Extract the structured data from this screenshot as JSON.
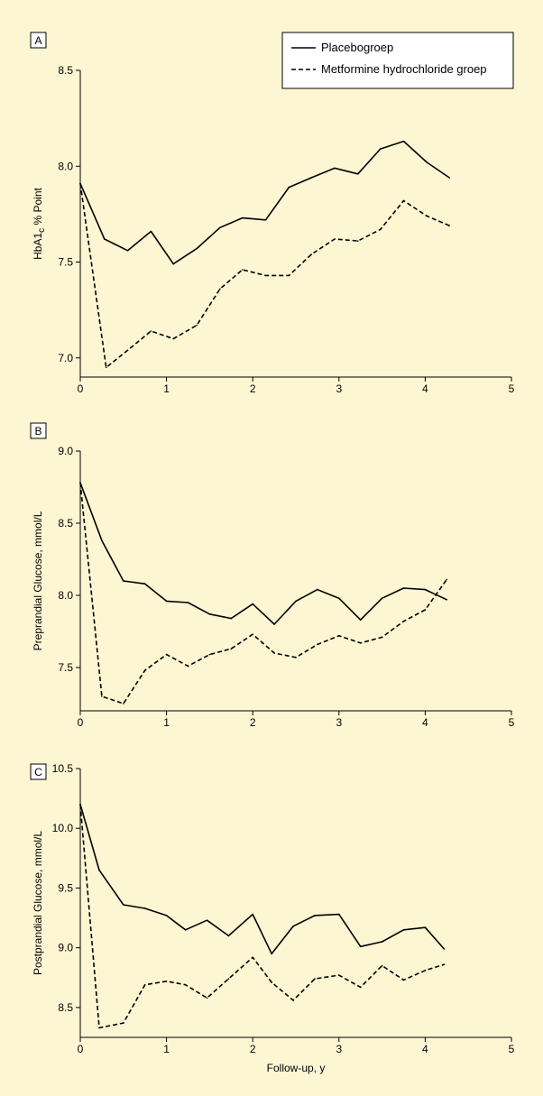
{
  "colors": {
    "background": "#fdf6d3",
    "line": "#000000",
    "panel_box": "#ffffff"
  },
  "legend": {
    "position": "top-right",
    "entries": [
      {
        "label": "Placebogroep",
        "style": "solid"
      },
      {
        "label": "Metformine hydrochloride groep",
        "style": "dashed"
      }
    ]
  },
  "chart_data": [
    {
      "panel": "A",
      "type": "line",
      "xlabel": "",
      "ylabel": "HbA1c, % Point",
      "xlim": [
        0,
        5
      ],
      "ylim": [
        6.9,
        8.5
      ],
      "xticks": [
        0,
        1,
        2,
        3,
        4,
        5
      ],
      "yticks": [
        7.0,
        7.5,
        8.0,
        8.5
      ],
      "ytick_labels": [
        "7.0",
        "7.5",
        "8.0",
        "8.5"
      ],
      "grid": false,
      "series": [
        {
          "name": "Placebogroep",
          "style": "solid",
          "x": [
            0,
            0.28,
            0.55,
            0.82,
            1.08,
            1.35,
            1.62,
            1.88,
            2.15,
            2.42,
            2.68,
            2.95,
            3.22,
            3.48,
            3.75,
            4.02,
            4.28
          ],
          "y": [
            7.91,
            7.62,
            7.56,
            7.66,
            7.49,
            7.57,
            7.68,
            7.73,
            7.72,
            7.89,
            7.94,
            7.99,
            7.96,
            8.09,
            8.13,
            8.02,
            7.94
          ]
        },
        {
          "name": "Metformine hydrochloride groep",
          "style": "dashed",
          "x": [
            0,
            0.3,
            0.55,
            0.82,
            1.08,
            1.35,
            1.62,
            1.88,
            2.15,
            2.42,
            2.68,
            2.95,
            3.22,
            3.48,
            3.75,
            4.02,
            4.28
          ],
          "y": [
            7.91,
            6.95,
            7.04,
            7.14,
            7.1,
            7.17,
            7.36,
            7.46,
            7.43,
            7.43,
            7.54,
            7.62,
            7.61,
            7.67,
            7.82,
            7.74,
            7.69
          ]
        }
      ]
    },
    {
      "panel": "B",
      "type": "line",
      "xlabel": "",
      "ylabel": "Preprandial Glucose, mmol/L",
      "xlim": [
        0,
        5
      ],
      "ylim": [
        7.2,
        9.0
      ],
      "xticks": [
        0,
        1,
        2,
        3,
        4,
        5
      ],
      "yticks": [
        7.5,
        8.0,
        8.5,
        9.0
      ],
      "ytick_labels": [
        "7.5",
        "8.0",
        "8.5",
        "9.0"
      ],
      "grid": false,
      "series": [
        {
          "name": "Placebogroep",
          "style": "solid",
          "x": [
            0,
            0.25,
            0.5,
            0.75,
            1,
            1.25,
            1.5,
            1.75,
            2,
            2.25,
            2.5,
            2.75,
            3,
            3.25,
            3.5,
            3.75,
            4,
            4.25
          ],
          "y": [
            8.78,
            8.38,
            8.1,
            8.08,
            7.96,
            7.95,
            7.87,
            7.84,
            7.94,
            7.8,
            7.96,
            8.04,
            7.98,
            7.83,
            7.98,
            8.05,
            8.04,
            7.97
          ]
        },
        {
          "name": "Metformine hydrochloride groep",
          "style": "dashed",
          "x": [
            0,
            0.25,
            0.5,
            0.75,
            1,
            1.25,
            1.5,
            1.75,
            2,
            2.25,
            2.5,
            2.75,
            3,
            3.25,
            3.5,
            3.75,
            4,
            4.25
          ],
          "y": [
            8.78,
            7.3,
            7.25,
            7.48,
            7.59,
            7.51,
            7.59,
            7.63,
            7.73,
            7.6,
            7.57,
            7.66,
            7.72,
            7.67,
            7.71,
            7.82,
            7.9,
            8.11
          ]
        }
      ]
    },
    {
      "panel": "C",
      "type": "line",
      "xlabel": "Follow-up, y",
      "ylabel": "Postprandial Glucose, mmol/L",
      "xlim": [
        0,
        5
      ],
      "ylim": [
        8.25,
        10.5
      ],
      "xticks": [
        0,
        1,
        2,
        3,
        4,
        5
      ],
      "yticks": [
        8.5,
        9.0,
        9.5,
        10.0,
        10.5
      ],
      "ytick_labels": [
        "8.5",
        "9.0",
        "9.5",
        "10.0",
        "10.5"
      ],
      "grid": false,
      "series": [
        {
          "name": "Placebogroep",
          "style": "solid",
          "x": [
            0,
            0.22,
            0.5,
            0.75,
            1,
            1.22,
            1.47,
            1.72,
            2,
            2.22,
            2.47,
            2.72,
            3,
            3.25,
            3.5,
            3.75,
            4,
            4.22
          ],
          "y": [
            10.2,
            9.65,
            9.36,
            9.33,
            9.27,
            9.15,
            9.23,
            9.1,
            9.28,
            8.95,
            9.18,
            9.27,
            9.28,
            9.01,
            9.05,
            9.15,
            9.17,
            8.99
          ]
        },
        {
          "name": "Metformine hydrochloride groep",
          "style": "dashed",
          "x": [
            0,
            0.22,
            0.5,
            0.75,
            1,
            1.22,
            1.47,
            1.72,
            2,
            2.22,
            2.47,
            2.72,
            3,
            3.25,
            3.5,
            3.75,
            4,
            4.22
          ],
          "y": [
            10.2,
            8.33,
            8.37,
            8.69,
            8.72,
            8.69,
            8.58,
            8.74,
            8.92,
            8.71,
            8.56,
            8.74,
            8.77,
            8.67,
            8.85,
            8.73,
            8.81,
            8.86
          ]
        }
      ]
    }
  ]
}
